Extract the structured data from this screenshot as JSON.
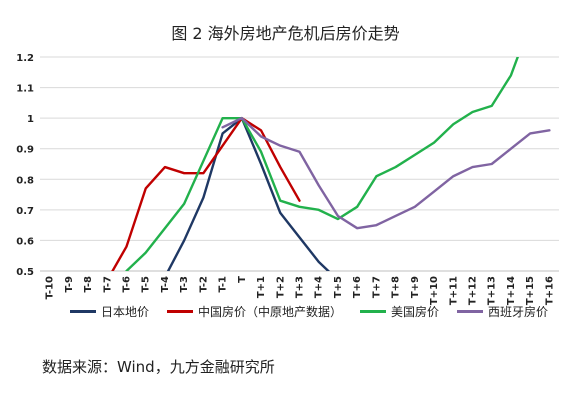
{
  "title": "图 2  海外房地产危机后房价走势",
  "source": "数据来源：Wind，九方金融研究所",
  "chart_data": {
    "type": "line",
    "title": "图 2  海外房地产危机后房价走势",
    "xlabel": "",
    "ylabel": "",
    "ylim": [
      0.5,
      1.2
    ],
    "yticks": [
      0.5,
      0.6,
      0.7,
      0.8,
      0.9,
      1.0,
      1.1,
      1.2
    ],
    "yticklabels": [
      "0.5",
      "0.6",
      "0.7",
      "0.8",
      "0.9",
      "1",
      "1.1",
      "1.2"
    ],
    "grid": true,
    "legend_position": "bottom",
    "categories": [
      "T-10",
      "T-9",
      "T-8",
      "T-7",
      "T-6",
      "T-5",
      "T-4",
      "T-3",
      "T-2",
      "T-1",
      "T",
      "T+1",
      "T+2",
      "T+3",
      "T+4",
      "T+5",
      "T+6",
      "T+7",
      "T+8",
      "T+9",
      "T+10",
      "T+11",
      "T+12",
      "T+13",
      "T+14",
      "T+15",
      "T+16"
    ],
    "series": [
      {
        "name": "日本地价",
        "color": "#1f3864",
        "values": [
          null,
          null,
          null,
          null,
          null,
          null,
          0.48,
          0.6,
          0.74,
          0.95,
          1.0,
          0.85,
          0.69,
          0.61,
          0.53,
          0.47,
          null,
          null,
          null,
          null,
          null,
          null,
          null,
          null,
          null,
          null,
          null
        ]
      },
      {
        "name": "中国房价（中原地产数据）",
        "color": "#c00000",
        "values": [
          null,
          null,
          null,
          0.47,
          0.58,
          0.77,
          0.84,
          0.82,
          0.82,
          0.91,
          1.0,
          0.96,
          0.84,
          0.73,
          null,
          null,
          null,
          null,
          null,
          null,
          null,
          null,
          null,
          null,
          null,
          null,
          null
        ]
      },
      {
        "name": "美国房价",
        "color": "#22b14c",
        "values": [
          null,
          null,
          null,
          null,
          0.5,
          0.56,
          0.64,
          0.72,
          0.86,
          1.0,
          1.0,
          0.89,
          0.73,
          0.71,
          0.7,
          0.67,
          0.71,
          0.81,
          0.84,
          0.88,
          0.92,
          0.98,
          1.02,
          1.04,
          1.14,
          1.31,
          null
        ]
      },
      {
        "name": "西班牙房价",
        "color": "#8064a2",
        "values": [
          null,
          null,
          null,
          null,
          null,
          null,
          null,
          null,
          null,
          0.97,
          1.0,
          0.94,
          0.91,
          0.89,
          0.78,
          0.68,
          0.64,
          0.65,
          0.68,
          0.71,
          0.76,
          0.81,
          0.84,
          0.85,
          0.9,
          0.95,
          0.96
        ]
      }
    ]
  }
}
